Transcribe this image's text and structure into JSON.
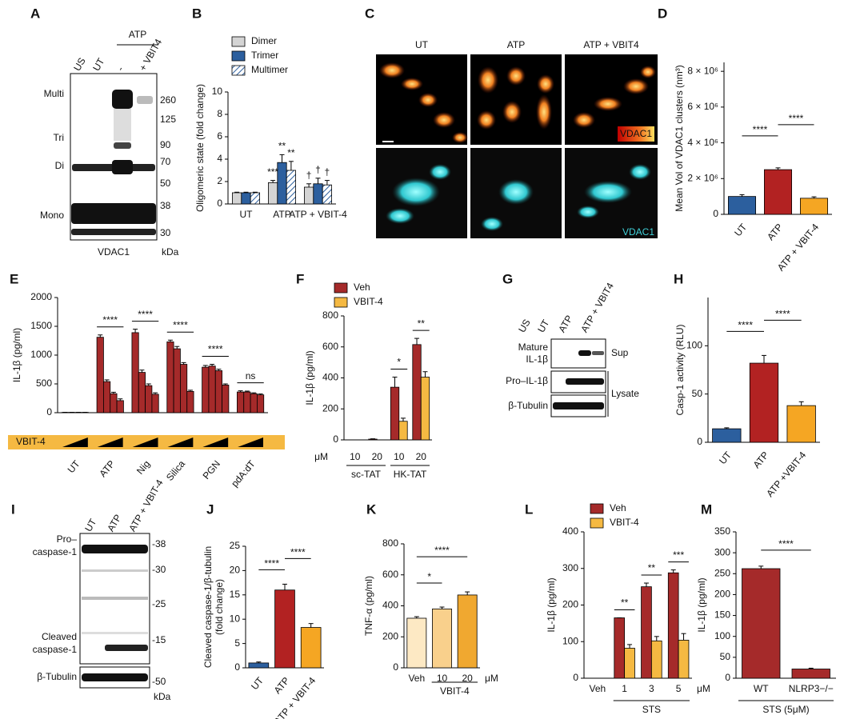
{
  "blot_a": {
    "panel": "A",
    "top_label": "ATP",
    "lanes": [
      "US",
      "UT",
      "-",
      "+ VBIT4"
    ],
    "bands": [
      "Multi",
      "Tri",
      "Di",
      "Mono"
    ],
    "markers": [
      "260",
      "125",
      "90",
      "70",
      "50",
      "38",
      "30"
    ],
    "caption": "VDAC1",
    "unit": "kDa"
  },
  "micrographs": {
    "panel": "C",
    "columns": [
      "UT",
      "ATP",
      "ATP + VBIT4"
    ],
    "stain_top": "VDAC1",
    "stain_bottom": "VDAC1"
  },
  "blot_g": {
    "panel": "G",
    "lanes": [
      "US",
      "UT",
      "ATP",
      "ATP + VBIT4"
    ],
    "mature_label": [
      "Mature",
      "IL-1β"
    ],
    "pro_label": "Pro–IL-1β",
    "tubulin_label": "β-Tubulin",
    "fractions": [
      "Sup",
      "Lysate"
    ]
  },
  "blot_i": {
    "panel": "I",
    "lanes": [
      "UT",
      "ATP",
      "ATP + VBIT-4"
    ],
    "pro_label": [
      "Pro–",
      "caspase-1"
    ],
    "cleaved_label": [
      "Cleaved",
      "caspase-1"
    ],
    "tubulin_label": "β-Tubulin",
    "markers": [
      "-38",
      "-30",
      "-25",
      "-15",
      "-50"
    ],
    "unit": "kDa"
  },
  "chart_data": [
    {
      "type": "bar",
      "panel": "B",
      "ylabel": "Oligomeric state (fold change)",
      "categories": [
        "UT",
        "ATP",
        "ATP + VBIT-4"
      ],
      "series": [
        {
          "name": "Dimer",
          "color": "#d4d4d4",
          "values": [
            1,
            1.9,
            1.5
          ],
          "errors": [
            0.05,
            0.2,
            0.3
          ]
        },
        {
          "name": "Trimer",
          "color": "#2c5f9e",
          "values": [
            1,
            3.7,
            1.8
          ],
          "errors": [
            0.05,
            0.7,
            0.5
          ]
        },
        {
          "name": "Multimer",
          "color": "#ffffff",
          "hatch": true,
          "values": [
            1,
            3.0,
            1.7
          ],
          "errors": [
            0.05,
            0.8,
            0.4
          ]
        }
      ],
      "ylim": [
        0,
        10
      ],
      "yticks": [
        0,
        2,
        4,
        6,
        8,
        10
      ],
      "annotations": [
        {
          "text": "***",
          "category": 1,
          "series": 0
        },
        {
          "text": "**",
          "category": 1,
          "series": 1
        },
        {
          "text": "**",
          "category": 1,
          "series": 2
        },
        {
          "text": "†",
          "category": 2,
          "series": 0
        },
        {
          "text": "†",
          "category": 2,
          "series": 1
        },
        {
          "text": "†",
          "category": 2,
          "series": 2
        }
      ]
    },
    {
      "type": "bar",
      "panel": "D",
      "ylabel": "Mean Vol of VDAC1 clusters (nm³)",
      "categories": [
        "UT",
        "ATP",
        "ATP + VBIT-4"
      ],
      "values": [
        1000000,
        2500000,
        900000
      ],
      "errors": [
        100000,
        100000,
        80000
      ],
      "colors": [
        "#2c5f9e",
        "#b22222",
        "#f5a623"
      ],
      "ylim": [
        0,
        8500000
      ],
      "yticks": [
        0,
        {
          "value": 2000000,
          "label": "2 × 10⁶"
        },
        {
          "value": 4000000,
          "label": "4 × 10⁶"
        },
        {
          "value": 6000000,
          "label": "6 × 10⁶"
        },
        {
          "value": 8000000,
          "label": "8 × 10⁶"
        }
      ],
      "brackets": [
        {
          "from": 0,
          "to": 1,
          "text": "****"
        },
        {
          "from": 1,
          "to": 2,
          "text": "****"
        }
      ]
    },
    {
      "type": "bar",
      "panel": "E",
      "ylabel": "IL-1β (pg/ml)",
      "categories": [
        "UT",
        "ATP",
        "Nig",
        "Silica",
        "PGN",
        "pdA:dT"
      ],
      "dose": "VBIT-4",
      "series": [
        {
          "color": "#a52a2a",
          "values": [
            5,
            1310,
            1390,
            1230,
            790,
            360
          ],
          "errors": [
            2,
            40,
            60,
            30,
            30,
            20
          ]
        },
        {
          "color": "#a52a2a",
          "values": [
            5,
            540,
            700,
            1110,
            810,
            360
          ],
          "errors": [
            2,
            30,
            40,
            40,
            30,
            15
          ]
        },
        {
          "color": "#a52a2a",
          "values": [
            5,
            330,
            470,
            840,
            730,
            330
          ],
          "errors": [
            2,
            25,
            30,
            30,
            25,
            15
          ]
        },
        {
          "color": "#a52a2a",
          "values": [
            5,
            210,
            320,
            370,
            480,
            310
          ],
          "errors": [
            2,
            30,
            25,
            20,
            20,
            15
          ]
        }
      ],
      "ylim": [
        0,
        2000
      ],
      "yticks": [
        0,
        500,
        1000,
        1500,
        2000
      ],
      "group_brackets": [
        {
          "category": 1,
          "text": "****"
        },
        {
          "category": 2,
          "text": "****"
        },
        {
          "category": 3,
          "text": "****"
        },
        {
          "category": 4,
          "text": "****"
        },
        {
          "category": 5,
          "text": "ns"
        }
      ]
    },
    {
      "type": "bar",
      "panel": "F",
      "ylabel": "IL-1β (pg/ml)",
      "categories": [
        "10",
        "20",
        "10",
        "20"
      ],
      "unit": "μM",
      "groups": [
        {
          "label": "sc-TAT",
          "from": 0,
          "to": 1
        },
        {
          "label": "HK-TAT",
          "from": 2,
          "to": 3
        }
      ],
      "series": [
        {
          "name": "Veh",
          "color": "#a52a2a",
          "values": [
            0,
            5,
            340,
            615
          ],
          "errors": [
            0,
            2,
            65,
            40
          ]
        },
        {
          "name": "VBIT-4",
          "color": "#f5b942",
          "values": [
            0,
            0,
            120,
            405
          ],
          "errors": [
            0,
            0,
            20,
            35
          ]
        }
      ],
      "ylim": [
        0,
        800
      ],
      "yticks": [
        0,
        200,
        400,
        600,
        800
      ],
      "group_brackets": [
        {
          "category": 2,
          "text": "*"
        },
        {
          "category": 3,
          "text": "**"
        }
      ]
    },
    {
      "type": "bar",
      "panel": "H",
      "ylabel": "Casp-1 activity (RLU)",
      "categories": [
        "UT",
        "ATP",
        "ATP +VBIT-4"
      ],
      "values": [
        14,
        82,
        38
      ],
      "errors": [
        1,
        8,
        4
      ],
      "colors": [
        "#2c5f9e",
        "#b22222",
        "#f5a623"
      ],
      "ylim": [
        0,
        150
      ],
      "yticks": [
        0,
        50,
        100
      ],
      "brackets": [
        {
          "from": 0,
          "to": 1,
          "text": "****"
        },
        {
          "from": 1,
          "to": 2,
          "text": "****"
        }
      ]
    },
    {
      "type": "bar",
      "panel": "J",
      "ylabel": [
        "Cleaved caspase-1/β-tubulin",
        "(fold change)"
      ],
      "categories": [
        "UT",
        "ATP",
        "ATP + VBIT-4"
      ],
      "values": [
        1,
        16,
        8.3
      ],
      "errors": [
        0.2,
        1.2,
        0.8
      ],
      "colors": [
        "#2c5f9e",
        "#b22222",
        "#f5a623"
      ],
      "ylim": [
        0,
        25
      ],
      "yticks": [
        0,
        5,
        10,
        15,
        20,
        25
      ],
      "brackets": [
        {
          "from": 0,
          "to": 1,
          "text": "****"
        },
        {
          "from": 1,
          "to": 2,
          "text": "****"
        }
      ]
    },
    {
      "type": "bar",
      "panel": "K",
      "ylabel": "TNF-α (pg/ml)",
      "categories": [
        "Veh",
        "10",
        "20"
      ],
      "unit": "μM",
      "groups": [
        {
          "label": "VBIT-4",
          "from": 1,
          "to": 2
        }
      ],
      "values": [
        320,
        380,
        470
      ],
      "errors": [
        10,
        12,
        20
      ],
      "colors": [
        "#fde9c4",
        "#f9d08c",
        "#f0a830"
      ],
      "ylim": [
        0,
        800
      ],
      "yticks": [
        0,
        200,
        400,
        600,
        800
      ],
      "brackets": [
        {
          "from": 0,
          "to": 1,
          "text": "*"
        },
        {
          "from": 0,
          "to": 2,
          "text": "****"
        }
      ]
    },
    {
      "type": "bar",
      "panel": "L",
      "ylabel": "IL-1β (pg/ml)",
      "categories": [
        "Veh",
        "1",
        "3",
        "5"
      ],
      "unit": "μM",
      "groups": [
        {
          "label": "STS",
          "from": 1,
          "to": 3
        }
      ],
      "series": [
        {
          "name": "Veh",
          "color": "#a52a2a",
          "values": [
            0,
            165,
            250,
            288
          ],
          "errors": [
            0,
            0,
            10,
            8
          ]
        },
        {
          "name": "VBIT-4",
          "color": "#f5b942",
          "values": [
            0,
            82,
            102,
            104
          ],
          "errors": [
            0,
            10,
            12,
            18
          ]
        }
      ],
      "ylim": [
        0,
        400
      ],
      "yticks": [
        0,
        100,
        200,
        300,
        400
      ],
      "group_brackets": [
        {
          "category": 1,
          "text": "**"
        },
        {
          "category": 2,
          "text": "**"
        },
        {
          "category": 3,
          "text": "***"
        }
      ]
    },
    {
      "type": "bar",
      "panel": "M",
      "ylabel": "IL-1β (pg/ml)",
      "categories": [
        "WT",
        "NLRP3−/−"
      ],
      "groups": [
        {
          "label": "STS (5μM)",
          "from": 0,
          "to": 1
        }
      ],
      "values": [
        262,
        22
      ],
      "errors": [
        6,
        2
      ],
      "colors": [
        "#a52a2a",
        "#a52a2a"
      ],
      "ylim": [
        0,
        350
      ],
      "yticks": [
        0,
        50,
        100,
        150,
        200,
        250,
        300,
        350
      ],
      "brackets": [
        {
          "from": 0,
          "to": 1,
          "text": "****"
        }
      ]
    }
  ]
}
